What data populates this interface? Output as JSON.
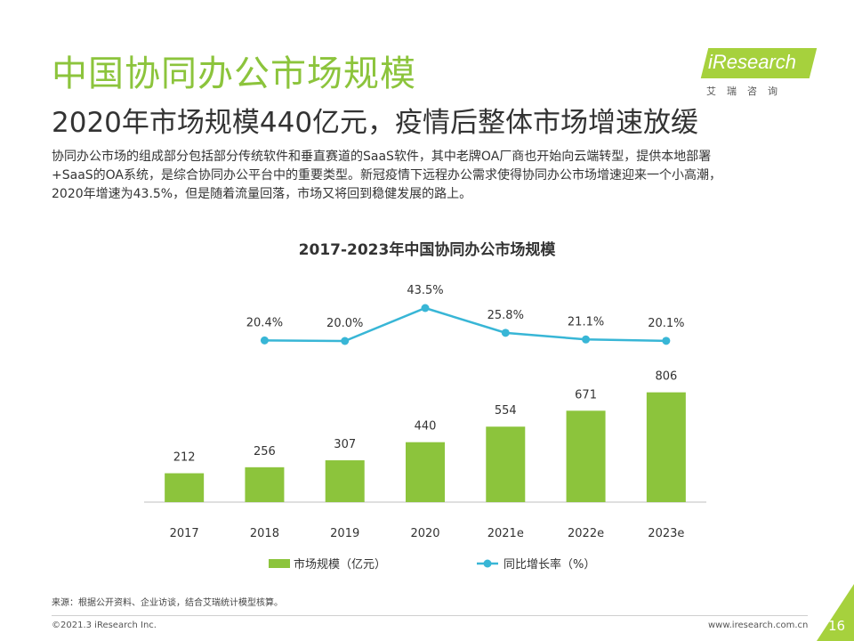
{
  "header": {
    "title": "中国协同办公市场规模",
    "subtitle": "2020年市场规模440亿元，疫情后整体市场增速放缓",
    "description_lines": [
      "协同办公市场的组成部分包括部分传统软件和垂直赛道的SaaS软件，其中老牌OA厂商也开始向云端转型，提供本地部署",
      "+SaaS的OA系统，是综合协同办公平台中的重要类型。新冠疫情下远程办公需求使得协同办公市场增速迎来一个小高潮，",
      "2020年增速为43.5%，但是随着流量回落，市场又将回到稳健发展的路上。"
    ]
  },
  "logo": {
    "text": "iResearch",
    "cn": "艾瑞咨询"
  },
  "chart_data": {
    "type": "bar",
    "title": "2017-2023年中国协同办公市场规模",
    "categories": [
      "2017",
      "2018",
      "2019",
      "2020",
      "2021e",
      "2022e",
      "2023e"
    ],
    "series": [
      {
        "name": "市场规模（亿元）",
        "type": "bar",
        "values": [
          212,
          256,
          307,
          440,
          554,
          671,
          806
        ],
        "labels": [
          "212",
          "256",
          "307",
          "440",
          "554",
          "671",
          "806"
        ]
      },
      {
        "name": "同比增长率（%）",
        "type": "line",
        "values": [
          null,
          20.4,
          20.0,
          43.5,
          25.8,
          21.1,
          20.1
        ],
        "labels": [
          "",
          "20.4%",
          "20.0%",
          "43.5%",
          "25.8%",
          "21.1%",
          "20.1%"
        ]
      }
    ],
    "legend_position": "bottom-center",
    "colors": {
      "bar": "#8cc43c",
      "line": "#38b6d6"
    },
    "ylim_bar": [
      0,
      1000
    ]
  },
  "footer": {
    "source": "来源：根据公开资料、企业访谈，结合艾瑞统计模型核算。",
    "copyright": "©2021.3 iResearch Inc.",
    "website": "www.iresearch.com.cn",
    "page_number": "16"
  }
}
